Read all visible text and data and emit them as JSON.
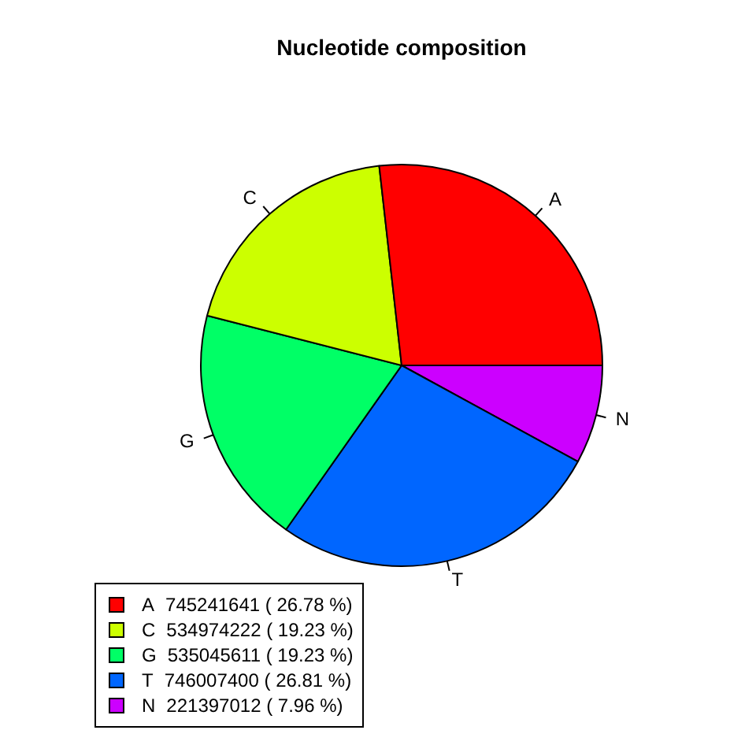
{
  "chart_data": {
    "type": "pie",
    "title": "Nucleotide composition",
    "categories": [
      "A",
      "C",
      "G",
      "T",
      "N"
    ],
    "values": [
      745241641,
      534974222,
      535045611,
      746007400,
      221397012
    ],
    "colors": [
      "#ff0000",
      "#ccff00",
      "#00ff66",
      "#0066ff",
      "#cc00ff"
    ],
    "value_labels": [
      "745241641 ( 26.78 %)",
      "534974222 ( 19.23 %)",
      "535045611 ( 19.23 %)",
      "746007400 ( 26.81 %)",
      "221397012 ( 7.96 %)"
    ],
    "legend": "bottom left"
  }
}
